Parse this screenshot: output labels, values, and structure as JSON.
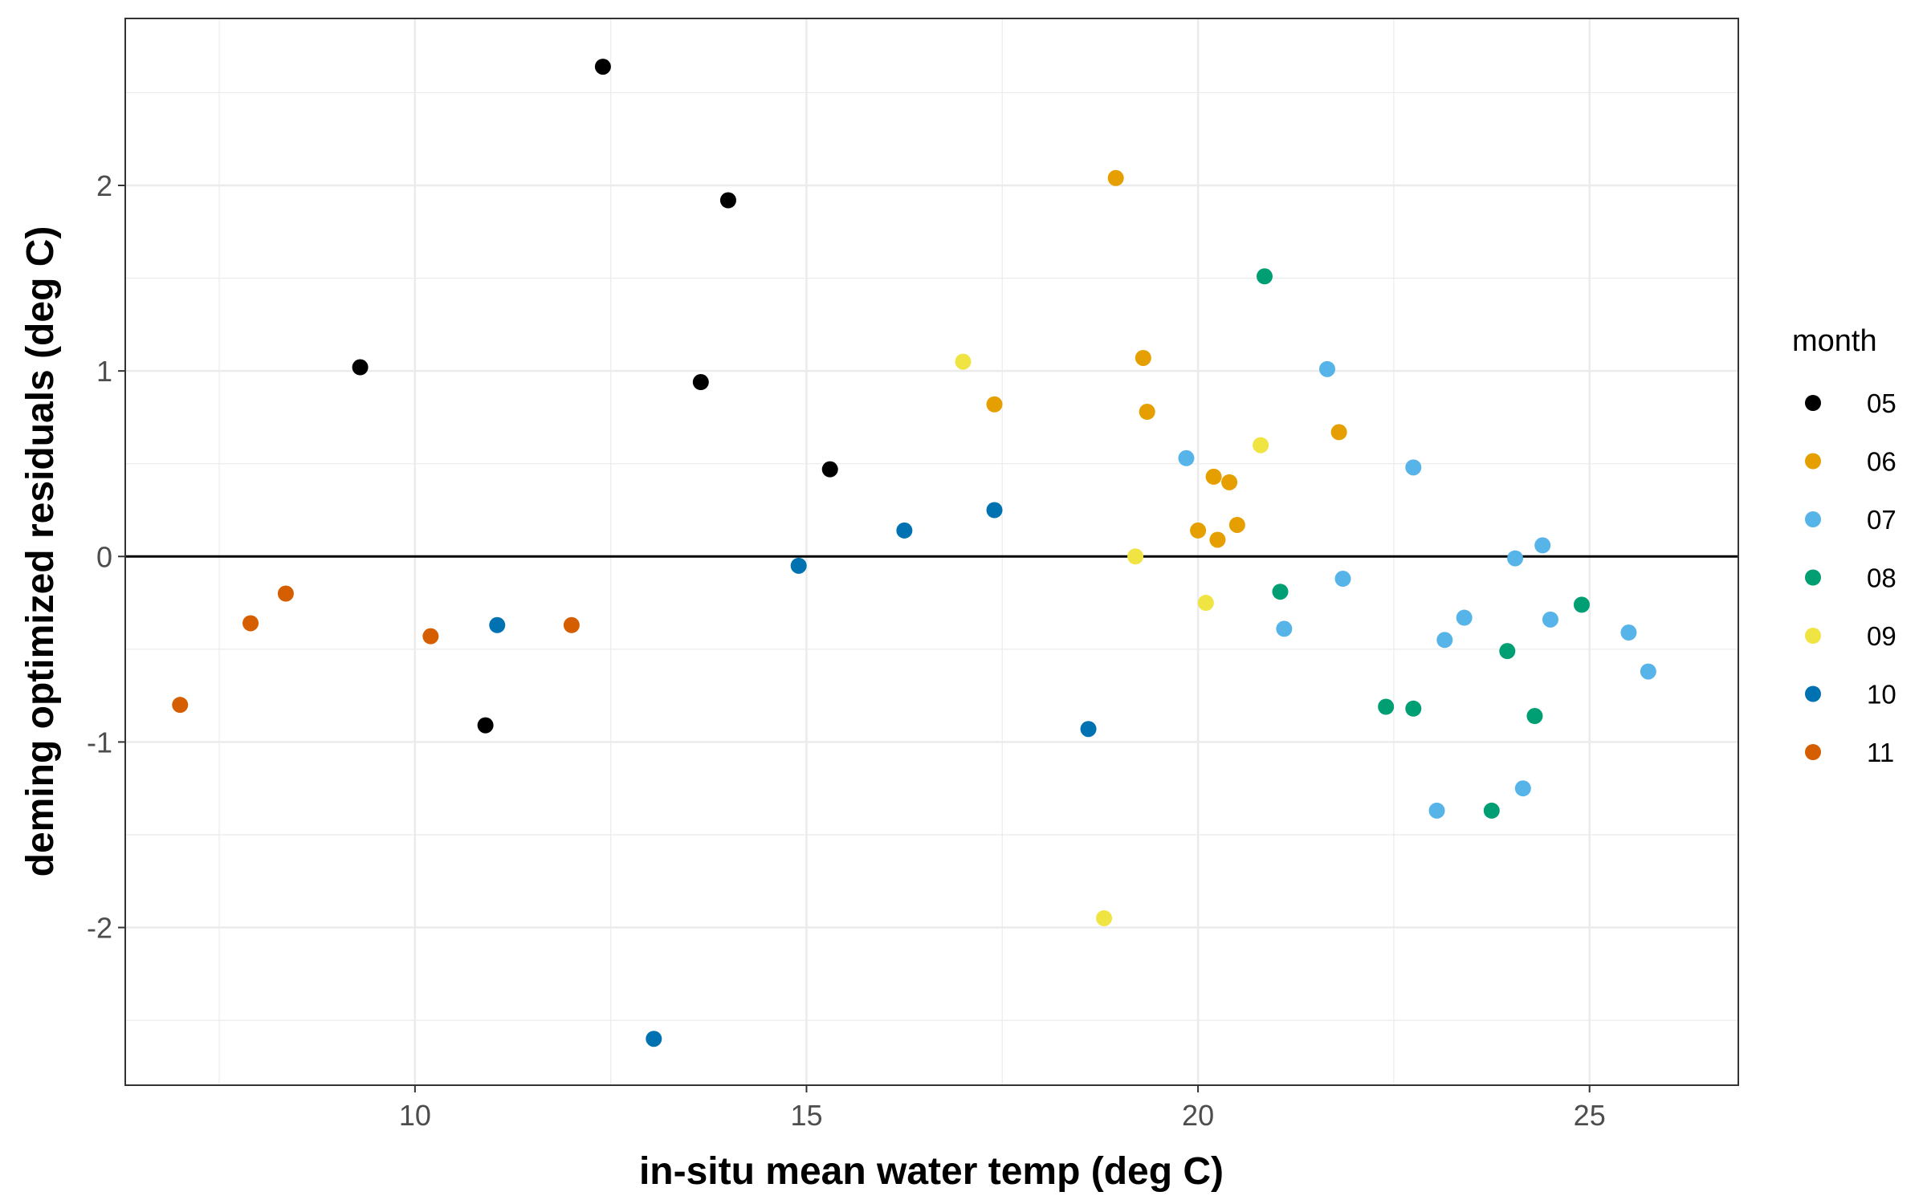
{
  "chart_data": {
    "type": "scatter",
    "xlabel": "in-situ mean water temp (deg C)",
    "ylabel": "deming optimized residuals (deg C)",
    "xlim": [
      6.3,
      26.9
    ],
    "ylim": [
      -2.85,
      2.9
    ],
    "x_ticks": [
      10,
      15,
      20,
      25
    ],
    "y_ticks": [
      -2,
      -1,
      0,
      1,
      2
    ],
    "x_tick_labels": [
      "10",
      "15",
      "20",
      "25"
    ],
    "y_tick_labels": [
      "-2",
      "-1",
      "0",
      "1",
      "2"
    ],
    "grid": true,
    "reference_line_y": 0,
    "legend": {
      "title": "month",
      "position": "right"
    },
    "series": [
      {
        "name": "05",
        "color": "#000000",
        "points": [
          [
            9.3,
            1.02
          ],
          [
            10.9,
            -0.91
          ],
          [
            12.4,
            2.64
          ],
          [
            13.65,
            0.94
          ],
          [
            14.0,
            1.92
          ],
          [
            15.3,
            0.47
          ]
        ]
      },
      {
        "name": "06",
        "color": "#E69F00",
        "points": [
          [
            17.4,
            0.82
          ],
          [
            18.95,
            2.04
          ],
          [
            19.3,
            1.07
          ],
          [
            19.35,
            0.78
          ],
          [
            20.0,
            0.14
          ],
          [
            20.2,
            0.43
          ],
          [
            20.25,
            0.09
          ],
          [
            20.4,
            0.4
          ],
          [
            20.5,
            0.17
          ],
          [
            21.8,
            0.67
          ]
        ]
      },
      {
        "name": "07",
        "color": "#56B4E9",
        "points": [
          [
            19.85,
            0.53
          ],
          [
            21.1,
            -0.39
          ],
          [
            21.65,
            1.01
          ],
          [
            21.85,
            -0.12
          ],
          [
            22.75,
            0.48
          ],
          [
            23.05,
            -1.37
          ],
          [
            23.15,
            -0.45
          ],
          [
            23.4,
            -0.33
          ],
          [
            24.05,
            -0.01
          ],
          [
            24.15,
            -1.25
          ],
          [
            24.4,
            0.06
          ],
          [
            24.5,
            -0.34
          ],
          [
            25.5,
            -0.41
          ],
          [
            25.75,
            -0.62
          ]
        ]
      },
      {
        "name": "08",
        "color": "#009E73",
        "points": [
          [
            20.85,
            1.51
          ],
          [
            21.05,
            -0.19
          ],
          [
            22.4,
            -0.81
          ],
          [
            22.75,
            -0.82
          ],
          [
            23.75,
            -1.37
          ],
          [
            23.95,
            -0.51
          ],
          [
            24.3,
            -0.86
          ],
          [
            24.9,
            -0.26
          ]
        ]
      },
      {
        "name": "09",
        "color": "#F0E442",
        "points": [
          [
            17.0,
            1.05
          ],
          [
            18.8,
            -1.95
          ],
          [
            19.2,
            0.0
          ],
          [
            20.1,
            -0.25
          ],
          [
            20.8,
            0.6
          ]
        ]
      },
      {
        "name": "10",
        "color": "#0072B2",
        "points": [
          [
            11.05,
            -0.37
          ],
          [
            13.05,
            -2.6
          ],
          [
            14.9,
            -0.05
          ],
          [
            16.25,
            0.14
          ],
          [
            17.4,
            0.25
          ],
          [
            18.6,
            -0.93
          ]
        ]
      },
      {
        "name": "11",
        "color": "#D55E00",
        "points": [
          [
            7.0,
            -0.8
          ],
          [
            7.9,
            -0.36
          ],
          [
            8.35,
            -0.2
          ],
          [
            10.2,
            -0.43
          ],
          [
            12.0,
            -0.37
          ]
        ]
      }
    ]
  }
}
